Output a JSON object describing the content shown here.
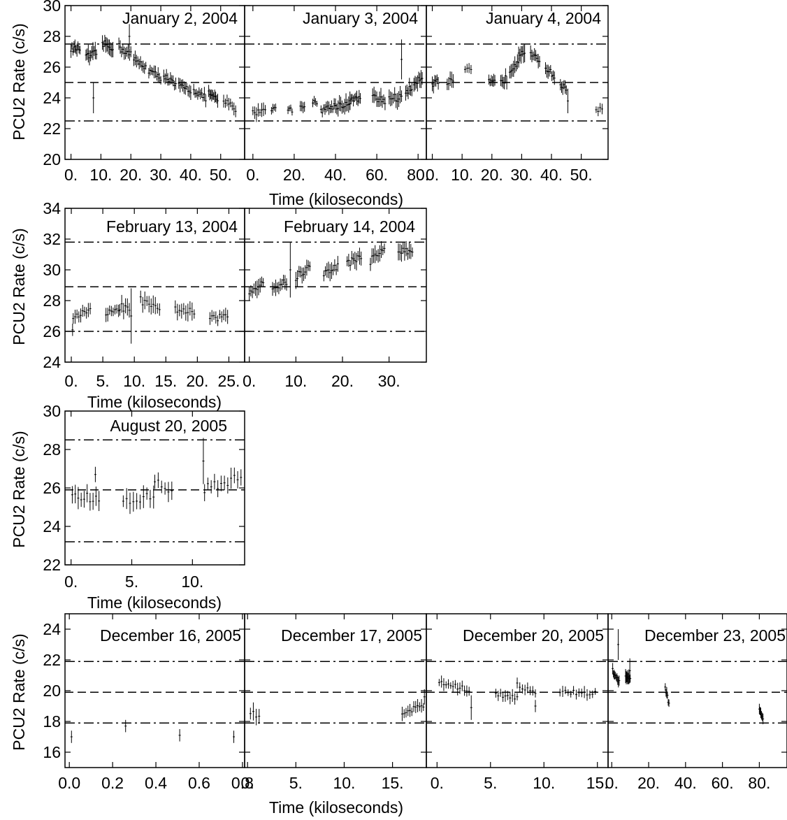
{
  "chart_data": [
    {
      "type": "scatter",
      "title": "January 2, 2004",
      "ylabel": "PCU2 Rate (c/s)",
      "xlabel": "",
      "xlim": [
        -2,
        58
      ],
      "ylim": [
        20,
        30
      ],
      "xticks": [
        0,
        10,
        20,
        30,
        40,
        50
      ],
      "xtick_labels": [
        "0.",
        "10.",
        "20.",
        "30.",
        "40.",
        "50."
      ],
      "yticks": [
        20,
        22,
        24,
        26,
        28,
        30
      ],
      "ytick_labels": [
        "20",
        "22",
        "24",
        "26",
        "28",
        "30"
      ],
      "reference_lines": [
        {
          "y": 27.5,
          "style": "dash-dot"
        },
        {
          "y": 25.0,
          "style": "dashed"
        },
        {
          "y": 22.5,
          "style": "dash-dot"
        }
      ],
      "segments": [
        {
          "x0": 0,
          "x1": 3,
          "y0": 27.2,
          "y1": 27.2,
          "noise": 0.4,
          "n": 10
        },
        {
          "x0": 5,
          "x1": 8.5,
          "y0": 26.6,
          "y1": 26.9,
          "noise": 0.5,
          "n": 10
        },
        {
          "x0": 10.5,
          "x1": 14,
          "y0": 27.5,
          "y1": 27.3,
          "noise": 0.5,
          "n": 10
        },
        {
          "x0": 16,
          "x1": 20,
          "y0": 27.3,
          "y1": 26.8,
          "noise": 0.5,
          "n": 10
        },
        {
          "x0": 21,
          "x1": 25,
          "y0": 26.5,
          "y1": 26.0,
          "noise": 0.4,
          "n": 10
        },
        {
          "x0": 26,
          "x1": 30,
          "y0": 25.8,
          "y1": 25.3,
          "noise": 0.4,
          "n": 10
        },
        {
          "x0": 31,
          "x1": 35,
          "y0": 25.5,
          "y1": 24.8,
          "noise": 0.4,
          "n": 10
        },
        {
          "x0": 36,
          "x1": 40,
          "y0": 24.8,
          "y1": 24.5,
          "noise": 0.4,
          "n": 10
        },
        {
          "x0": 41,
          "x1": 45,
          "y0": 24.5,
          "y1": 24.0,
          "noise": 0.4,
          "n": 10
        },
        {
          "x0": 46,
          "x1": 49,
          "y0": 24.3,
          "y1": 23.8,
          "noise": 0.4,
          "n": 10
        },
        {
          "x0": 51,
          "x1": 55,
          "y0": 23.8,
          "y1": 23.3,
          "noise": 0.4,
          "n": 8
        }
      ],
      "outliers": [
        {
          "x": 7.5,
          "y": 24.0,
          "err": 1.0
        },
        {
          "x": 19.5,
          "y": 28.0,
          "err": 0.8
        }
      ]
    },
    {
      "type": "scatter",
      "title": "January 3, 2004",
      "ylabel": "",
      "xlabel": "Time (kiloseconds)",
      "xlim": [
        -4,
        84
      ],
      "ylim": [
        20,
        30
      ],
      "xticks": [
        0,
        20,
        40,
        60,
        80
      ],
      "xtick_labels": [
        "0.",
        "20.",
        "40.",
        "60.",
        "80."
      ],
      "yticks": [
        20,
        22,
        24,
        26,
        28,
        30
      ],
      "ytick_labels": [
        "",
        "",
        "",
        "",
        "",
        ""
      ],
      "reference_lines": [
        {
          "y": 27.5,
          "style": "dash-dot"
        },
        {
          "y": 25.0,
          "style": "dashed"
        },
        {
          "y": 22.5,
          "style": "dash-dot"
        }
      ],
      "segments": [
        {
          "x0": 0,
          "x1": 6,
          "y0": 23.0,
          "y1": 23.3,
          "noise": 0.4,
          "n": 8
        },
        {
          "x0": 9,
          "x1": 11,
          "y0": 23.3,
          "y1": 23.3,
          "noise": 0.3,
          "n": 4
        },
        {
          "x0": 17,
          "x1": 19,
          "y0": 23.3,
          "y1": 23.2,
          "noise": 0.3,
          "n": 4
        },
        {
          "x0": 23,
          "x1": 25,
          "y0": 23.5,
          "y1": 23.5,
          "noise": 0.3,
          "n": 4
        },
        {
          "x0": 29,
          "x1": 31,
          "y0": 23.7,
          "y1": 23.7,
          "noise": 0.3,
          "n": 4
        },
        {
          "x0": 33,
          "x1": 40,
          "y0": 23.2,
          "y1": 23.5,
          "noise": 0.4,
          "n": 12
        },
        {
          "x0": 40,
          "x1": 47,
          "y0": 23.5,
          "y1": 23.6,
          "noise": 0.5,
          "n": 12
        },
        {
          "x0": 47,
          "x1": 52,
          "y0": 23.8,
          "y1": 24.0,
          "noise": 0.4,
          "n": 10
        },
        {
          "x0": 58,
          "x1": 64,
          "y0": 24.0,
          "y1": 23.8,
          "noise": 0.5,
          "n": 10
        },
        {
          "x0": 66,
          "x1": 72,
          "y0": 24.0,
          "y1": 24.0,
          "noise": 0.5,
          "n": 10
        },
        {
          "x0": 74,
          "x1": 77,
          "y0": 24.5,
          "y1": 24.5,
          "noise": 0.5,
          "n": 6
        },
        {
          "x0": 78,
          "x1": 82,
          "y0": 25.0,
          "y1": 25.4,
          "noise": 0.5,
          "n": 8
        }
      ],
      "outliers": [
        {
          "x": 72,
          "y": 26.5,
          "err": 1.3
        }
      ]
    },
    {
      "type": "scatter",
      "title": "January 4, 2004",
      "ylabel": "",
      "xlabel": "",
      "xlim": [
        -2,
        59
      ],
      "ylim": [
        20,
        30
      ],
      "xticks": [
        0,
        10,
        20,
        30,
        40,
        50
      ],
      "xtick_labels": [
        "0.",
        "10.",
        "20.",
        "30.",
        "40.",
        "50."
      ],
      "yticks": [
        20,
        22,
        24,
        26,
        28,
        30
      ],
      "ytick_labels": [
        "",
        "",
        "",
        "",
        "",
        ""
      ],
      "reference_lines": [
        {
          "y": 27.5,
          "style": "dash-dot"
        },
        {
          "y": 25.0,
          "style": "dashed"
        },
        {
          "y": 22.5,
          "style": "dash-dot"
        }
      ],
      "segments": [
        {
          "x0": 0,
          "x1": 2,
          "y0": 25.0,
          "y1": 25.0,
          "noise": 0.5,
          "n": 6
        },
        {
          "x0": 5,
          "x1": 7,
          "y0": 25.0,
          "y1": 25.0,
          "noise": 0.5,
          "n": 5
        },
        {
          "x0": 11,
          "x1": 13,
          "y0": 25.8,
          "y1": 25.8,
          "noise": 0.3,
          "n": 4
        },
        {
          "x0": 19,
          "x1": 21,
          "y0": 25.0,
          "y1": 25.0,
          "noise": 0.4,
          "n": 6
        },
        {
          "x0": 23,
          "x1": 25,
          "y0": 25.2,
          "y1": 25.2,
          "noise": 0.5,
          "n": 6
        },
        {
          "x0": 26,
          "x1": 29,
          "y0": 25.8,
          "y1": 26.5,
          "noise": 0.5,
          "n": 8
        },
        {
          "x0": 29,
          "x1": 31,
          "y0": 27.0,
          "y1": 27.0,
          "noise": 0.5,
          "n": 6
        },
        {
          "x0": 33,
          "x1": 36,
          "y0": 26.8,
          "y1": 26.4,
          "noise": 0.4,
          "n": 8
        },
        {
          "x0": 38,
          "x1": 41,
          "y0": 26.0,
          "y1": 25.4,
          "noise": 0.4,
          "n": 8
        },
        {
          "x0": 43,
          "x1": 45,
          "y0": 24.8,
          "y1": 24.6,
          "noise": 0.4,
          "n": 6
        },
        {
          "x0": 55,
          "x1": 57,
          "y0": 23.3,
          "y1": 23.2,
          "noise": 0.3,
          "n": 4
        }
      ],
      "outliers": [
        {
          "x": 45.5,
          "y": 23.8,
          "err": 0.8
        }
      ]
    },
    {
      "type": "scatter",
      "title": "February 13, 2004",
      "ylabel": "PCU2 Rate (c/s)",
      "xlabel": "Time (kiloseconds)",
      "xlim": [
        -1,
        27.5
      ],
      "ylim": [
        24,
        34
      ],
      "xticks": [
        0,
        5,
        10,
        15,
        20,
        25
      ],
      "xtick_labels": [
        "0.",
        "5.",
        "10.",
        "15.",
        "20.",
        "25."
      ],
      "yticks": [
        24,
        26,
        28,
        30,
        32,
        34
      ],
      "ytick_labels": [
        "24",
        "26",
        "28",
        "30",
        "32",
        "34"
      ],
      "reference_lines": [
        {
          "y": 31.8,
          "style": "dash-dot"
        },
        {
          "y": 28.9,
          "style": "dashed"
        },
        {
          "y": 26.0,
          "style": "dash-dot"
        }
      ],
      "segments": [
        {
          "x0": 0.3,
          "x1": 3,
          "y0": 27.0,
          "y1": 27.3,
          "noise": 0.4,
          "n": 10
        },
        {
          "x0": 5.5,
          "x1": 7.5,
          "y0": 27.2,
          "y1": 27.3,
          "noise": 0.4,
          "n": 8
        },
        {
          "x0": 7.7,
          "x1": 9.2,
          "y0": 27.6,
          "y1": 27.5,
          "noise": 0.5,
          "n": 6
        },
        {
          "x0": 11,
          "x1": 14,
          "y0": 28.0,
          "y1": 27.3,
          "noise": 0.5,
          "n": 10
        },
        {
          "x0": 16.5,
          "x1": 19.5,
          "y0": 27.5,
          "y1": 27.2,
          "noise": 0.5,
          "n": 10
        },
        {
          "x0": 22,
          "x1": 24.8,
          "y0": 26.8,
          "y1": 27.0,
          "noise": 0.4,
          "n": 10
        }
      ],
      "outliers": [
        {
          "x": 9.5,
          "y": 27.0,
          "err": 1.8
        },
        {
          "x": 0.2,
          "y": 26.1,
          "err": 0.4
        }
      ]
    },
    {
      "type": "scatter",
      "title": "February 14, 2004",
      "ylabel": "",
      "xlabel": "",
      "xlim": [
        -1,
        38
      ],
      "ylim": [
        24,
        34
      ],
      "xticks": [
        0,
        10,
        20,
        30
      ],
      "xtick_labels": [
        "0.",
        "10.",
        "20.",
        "30."
      ],
      "yticks": [
        24,
        26,
        28,
        30,
        32,
        34
      ],
      "ytick_labels": [
        "",
        "",
        "",
        "",
        "",
        ""
      ],
      "reference_lines": [
        {
          "y": 31.8,
          "style": "dash-dot"
        },
        {
          "y": 28.9,
          "style": "dashed"
        },
        {
          "y": 26.0,
          "style": "dash-dot"
        }
      ],
      "segments": [
        {
          "x0": 0,
          "x1": 3,
          "y0": 28.5,
          "y1": 29.3,
          "noise": 0.5,
          "n": 10
        },
        {
          "x0": 5,
          "x1": 8,
          "y0": 28.8,
          "y1": 29.2,
          "noise": 0.5,
          "n": 10
        },
        {
          "x0": 10,
          "x1": 13,
          "y0": 29.5,
          "y1": 30.2,
          "noise": 0.5,
          "n": 10
        },
        {
          "x0": 16,
          "x1": 19,
          "y0": 29.7,
          "y1": 30.3,
          "noise": 0.5,
          "n": 10
        },
        {
          "x0": 21,
          "x1": 24,
          "y0": 30.4,
          "y1": 30.9,
          "noise": 0.5,
          "n": 10
        },
        {
          "x0": 26,
          "x1": 29,
          "y0": 30.6,
          "y1": 31.4,
          "noise": 0.5,
          "n": 10
        },
        {
          "x0": 32,
          "x1": 35,
          "y0": 31.2,
          "y1": 31.2,
          "noise": 0.5,
          "n": 10
        }
      ],
      "outliers": [
        {
          "x": 8.8,
          "y": 30.0,
          "err": 1.8
        }
      ]
    },
    {
      "type": "scatter",
      "title": "August 20, 2005",
      "ylabel": "PCU2 Rate (c/s)",
      "xlabel": "Time (kiloseconds)",
      "xlim": [
        -0.5,
        14.3
      ],
      "ylim": [
        22,
        30
      ],
      "xticks": [
        0,
        5,
        10
      ],
      "xtick_labels": [
        "0.",
        "5.",
        "10."
      ],
      "yticks": [
        22,
        24,
        26,
        28,
        30
      ],
      "ytick_labels": [
        "22",
        "24",
        "26",
        "28",
        "30"
      ],
      "reference_lines": [
        {
          "y": 28.5,
          "style": "dash-dot"
        },
        {
          "y": 25.9,
          "style": "dashed"
        },
        {
          "y": 23.2,
          "style": "dash-dot"
        }
      ],
      "segments": [
        {
          "x0": 0.1,
          "x1": 2.3,
          "y0": 25.6,
          "y1": 25.4,
          "noise": 0.5,
          "n": 10
        },
        {
          "x0": 4.3,
          "x1": 6.8,
          "y0": 25.2,
          "y1": 25.6,
          "noise": 0.5,
          "n": 10
        },
        {
          "x0": 6.9,
          "x1": 8.3,
          "y0": 26.3,
          "y1": 25.8,
          "noise": 0.5,
          "n": 6
        },
        {
          "x0": 11.0,
          "x1": 14.0,
          "y0": 26.0,
          "y1": 26.5,
          "noise": 0.5,
          "n": 12
        }
      ],
      "outliers": [
        {
          "x": 10.9,
          "y": 27.4,
          "err": 1.2
        },
        {
          "x": 2.0,
          "y": 26.7,
          "err": 0.4
        }
      ]
    },
    {
      "type": "scatter",
      "title": "December 16, 2005",
      "ylabel": "PCU2 Rate (c/s)",
      "xlabel": "",
      "xlim": [
        -0.02,
        0.81
      ],
      "ylim": [
        15,
        25
      ],
      "xticks": [
        0.0,
        0.2,
        0.4,
        0.6,
        0.8
      ],
      "xtick_labels": [
        "0.0",
        "0.2",
        "0.4",
        "0.6",
        "0.8"
      ],
      "yticks": [
        16,
        18,
        20,
        22,
        24
      ],
      "ytick_labels": [
        "16",
        "18",
        "20",
        "22",
        "24"
      ],
      "reference_lines": [
        {
          "y": 21.9,
          "style": "dash-dot"
        },
        {
          "y": 19.9,
          "style": "dashed"
        },
        {
          "y": 17.9,
          "style": "dash-dot"
        }
      ],
      "segments": [],
      "outliers": [
        {
          "x": 0.01,
          "y": 17.0,
          "err": 0.4
        },
        {
          "x": 0.26,
          "y": 17.7,
          "err": 0.4
        },
        {
          "x": 0.51,
          "y": 17.1,
          "err": 0.4
        },
        {
          "x": 0.76,
          "y": 17.0,
          "err": 0.4
        }
      ]
    },
    {
      "type": "scatter",
      "title": "December 17, 2005",
      "ylabel": "",
      "xlabel": "Time (kiloseconds)",
      "xlim": [
        -0.3,
        18.5
      ],
      "ylim": [
        15,
        25
      ],
      "xticks": [
        0,
        5,
        10,
        15
      ],
      "xtick_labels": [
        "0.",
        "5.",
        "10.",
        "15."
      ],
      "yticks": [
        16,
        18,
        20,
        22,
        24
      ],
      "ytick_labels": [
        "",
        "",
        "",
        "",
        ""
      ],
      "reference_lines": [
        {
          "y": 21.9,
          "style": "dash-dot"
        },
        {
          "y": 19.9,
          "style": "dashed"
        },
        {
          "y": 17.9,
          "style": "dash-dot"
        }
      ],
      "segments": [
        {
          "x0": 0.3,
          "x1": 1.2,
          "y0": 18.6,
          "y1": 18.5,
          "noise": 0.5,
          "n": 4
        },
        {
          "x0": 16.0,
          "x1": 18.2,
          "y0": 18.6,
          "y1": 19.0,
          "noise": 0.4,
          "n": 12
        }
      ],
      "outliers": [
        {
          "x": 18.3,
          "y": 19.6,
          "err": 0.5
        }
      ]
    },
    {
      "type": "scatter",
      "title": "December 20, 2005",
      "ylabel": "",
      "xlabel": "",
      "xlim": [
        -1,
        16
      ],
      "ylim": [
        15,
        25
      ],
      "xticks": [
        0,
        5,
        10,
        15
      ],
      "xtick_labels": [
        "0.",
        "5.",
        "10.",
        "15."
      ],
      "yticks": [
        16,
        18,
        20,
        22,
        24
      ],
      "ytick_labels": [
        "",
        "",
        "",
        "",
        ""
      ],
      "reference_lines": [
        {
          "y": 21.9,
          "style": "dash-dot"
        },
        {
          "y": 19.9,
          "style": "dashed"
        },
        {
          "y": 17.9,
          "style": "dash-dot"
        }
      ],
      "segments": [
        {
          "x0": 0.2,
          "x1": 3.0,
          "y0": 20.6,
          "y1": 20.0,
          "noise": 0.35,
          "n": 14
        },
        {
          "x0": 5.5,
          "x1": 7.5,
          "y0": 19.8,
          "y1": 19.6,
          "noise": 0.35,
          "n": 10
        },
        {
          "x0": 7.5,
          "x1": 9.2,
          "y0": 20.4,
          "y1": 19.8,
          "noise": 0.35,
          "n": 8
        },
        {
          "x0": 11.5,
          "x1": 14.8,
          "y0": 19.9,
          "y1": 19.8,
          "noise": 0.35,
          "n": 14
        }
      ],
      "outliers": [
        {
          "x": 3.2,
          "y": 18.9,
          "err": 0.8
        },
        {
          "x": 9.2,
          "y": 19.0,
          "err": 0.4
        }
      ]
    },
    {
      "type": "scatter",
      "title": "December 23, 2005",
      "ylabel": "",
      "xlabel": "",
      "xlim": [
        -2,
        95
      ],
      "ylim": [
        15,
        25
      ],
      "xticks": [
        0,
        20,
        40,
        60,
        80
      ],
      "xtick_labels": [
        "0.",
        "20.",
        "40.",
        "60.",
        "80."
      ],
      "yticks": [
        16,
        18,
        20,
        22,
        24
      ],
      "ytick_labels": [
        "",
        "",
        "",
        "",
        ""
      ],
      "reference_lines": [
        {
          "y": 21.9,
          "style": "dash-dot"
        },
        {
          "y": 19.9,
          "style": "dashed"
        },
        {
          "y": 17.9,
          "style": "dash-dot"
        }
      ],
      "segments": [
        {
          "x0": 0.5,
          "x1": 4,
          "y0": 21.3,
          "y1": 20.5,
          "noise": 0.35,
          "n": 10
        },
        {
          "x0": 7.5,
          "x1": 10,
          "y0": 20.8,
          "y1": 20.8,
          "noise": 0.4,
          "n": 8
        },
        {
          "x0": 29,
          "x1": 31,
          "y0": 20.1,
          "y1": 19.2,
          "noise": 0.3,
          "n": 6
        },
        {
          "x0": 80,
          "x1": 82,
          "y0": 18.9,
          "y1": 18.1,
          "noise": 0.3,
          "n": 6
        }
      ],
      "outliers": [
        {
          "x": 3.5,
          "y": 23.0,
          "err": 1.0
        },
        {
          "x": 9.8,
          "y": 21.3,
          "err": 0.8
        }
      ]
    }
  ]
}
